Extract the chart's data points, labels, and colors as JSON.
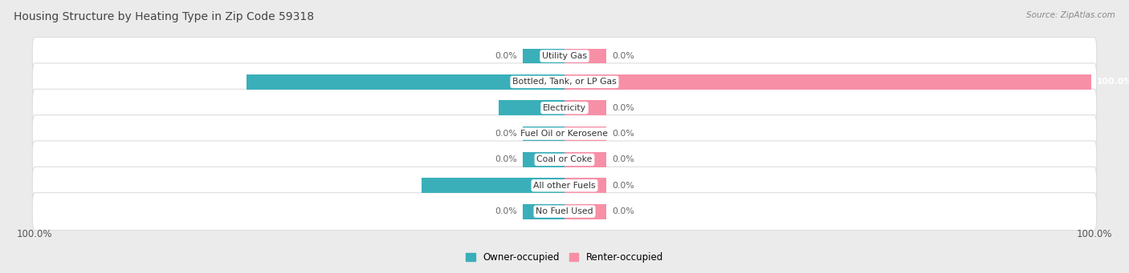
{
  "title": "Housing Structure by Heating Type in Zip Code 59318",
  "source_text": "Source: ZipAtlas.com",
  "categories": [
    "Utility Gas",
    "Bottled, Tank, or LP Gas",
    "Electricity",
    "Fuel Oil or Kerosene",
    "Coal or Coke",
    "All other Fuels",
    "No Fuel Used"
  ],
  "owner_values": [
    0.0,
    60.4,
    12.5,
    0.0,
    0.0,
    27.1,
    0.0
  ],
  "renter_values": [
    0.0,
    100.0,
    0.0,
    0.0,
    0.0,
    0.0,
    0.0
  ],
  "owner_color": "#3AAFB9",
  "renter_color": "#F78FA7",
  "bg_color": "#EBEBEB",
  "row_bg_color": "#F7F7F7",
  "title_color": "#444444",
  "value_color_inside": "#FFFFFF",
  "value_color_outside": "#666666",
  "x_axis_label": "100.0%",
  "legend_owner": "Owner-occupied",
  "legend_renter": "Renter-occupied",
  "stub_pct": 8.0,
  "xlim": 100
}
